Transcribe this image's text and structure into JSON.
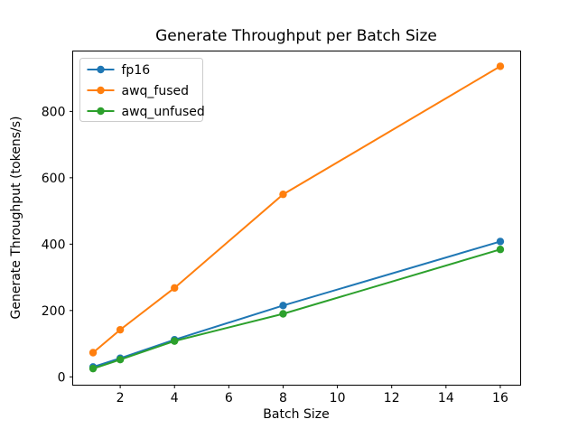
{
  "figure": {
    "background": "#ffffff",
    "text_color": "#000000",
    "spine_color": "#000000"
  },
  "chart_data": {
    "type": "line",
    "title": "Generate Throughput per Batch Size",
    "xlabel": "Batch Size",
    "ylabel": "Generate Throughput (tokens/s)",
    "x": [
      1,
      2,
      4,
      8,
      16
    ],
    "series": [
      {
        "name": "fp16",
        "color": "#1f77b4",
        "values": [
          30,
          56,
          112,
          215,
          408
        ]
      },
      {
        "name": "awq_fused",
        "color": "#ff7f0e",
        "values": [
          73,
          142,
          268,
          550,
          936
        ]
      },
      {
        "name": "awq_unfused",
        "color": "#2ca02c",
        "values": [
          25,
          52,
          108,
          190,
          384
        ]
      }
    ],
    "xlim": [
      0.25,
      16.75
    ],
    "ylim": [
      -25,
      982
    ],
    "x_ticks": [
      2,
      4,
      6,
      8,
      10,
      12,
      14,
      16
    ],
    "y_ticks": [
      0,
      200,
      400,
      600,
      800
    ],
    "grid": false,
    "legend_position": "upper-left",
    "marker": "circle",
    "line_width": 2,
    "marker_radius": 4.2
  }
}
